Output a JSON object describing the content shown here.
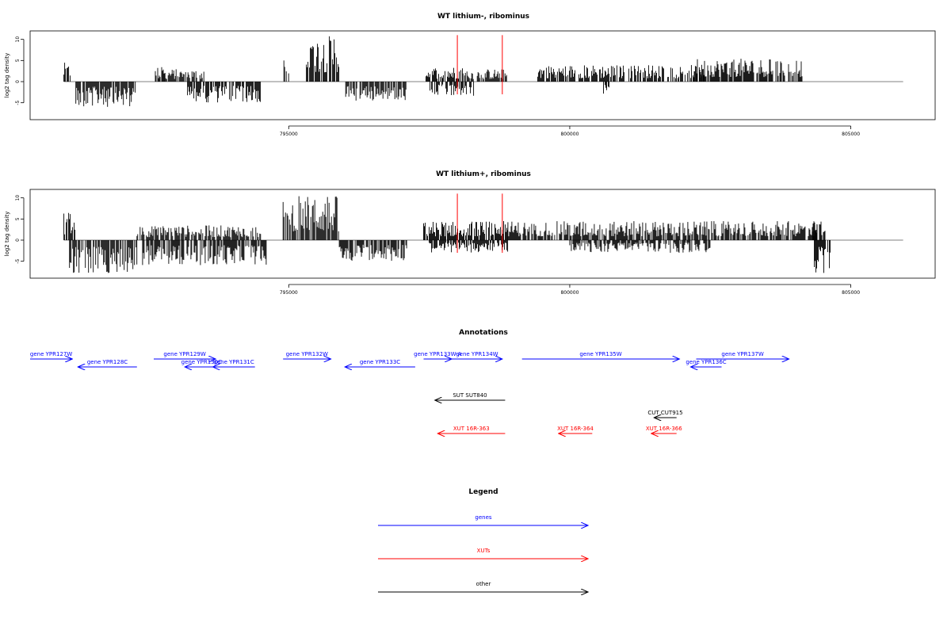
{
  "colors": {
    "gene": "#0000ff",
    "xut": "#ff0000",
    "other": "#000000",
    "marker": "#ff0000",
    "bars": "#000000",
    "baseline": "#808080"
  },
  "chart_data": [
    {
      "type": "bar",
      "title": "WT lithium-, ribominus",
      "ylabel": "log2 tag density",
      "xlim": [
        790400,
        806500
      ],
      "ylim": [
        -9,
        12
      ],
      "data_x_range": [
        791000,
        805000
      ],
      "xticks": [
        795000,
        800000,
        805000
      ],
      "yticks": [
        -5,
        0,
        5,
        10
      ],
      "grid": false,
      "markers_x": [
        798000,
        798800
      ],
      "segments": [
        {
          "x0": 791000,
          "x1": 791120,
          "sign": 1,
          "max": 4.5
        },
        {
          "x0": 791200,
          "x1": 792300,
          "sign": -1,
          "max": 6
        },
        {
          "x0": 792600,
          "x1": 792800,
          "sign": 1,
          "max": 3.5
        },
        {
          "x0": 792800,
          "x1": 793500,
          "sign": 1,
          "max": 3
        },
        {
          "x0": 793200,
          "x1": 794500,
          "sign": -1,
          "max": 5
        },
        {
          "x0": 794900,
          "x1": 795000,
          "sign": 1,
          "max": 7
        },
        {
          "x0": 795300,
          "x1": 795900,
          "sign": 1,
          "max": 11
        },
        {
          "x0": 796000,
          "x1": 797100,
          "sign": -1,
          "max": 4.5
        },
        {
          "x0": 797400,
          "x1": 798100,
          "sign": 1,
          "max": 3.5
        },
        {
          "x0": 797500,
          "x1": 798300,
          "sign": -1,
          "max": 3.5
        },
        {
          "x0": 798100,
          "x1": 798900,
          "sign": 1,
          "max": 3
        },
        {
          "x0": 799400,
          "x1": 802400,
          "sign": 1,
          "max": 4
        },
        {
          "x0": 800600,
          "x1": 800700,
          "sign": -1,
          "max": 3
        },
        {
          "x0": 802200,
          "x1": 804200,
          "sign": 1,
          "max": 5.5
        }
      ]
    },
    {
      "type": "bar",
      "title": "WT lithium+, ribominus",
      "ylabel": "log2 tag density",
      "xlim": [
        790400,
        806500
      ],
      "ylim": [
        -9,
        12
      ],
      "data_x_range": [
        791000,
        805000
      ],
      "xticks": [
        795000,
        800000,
        805000
      ],
      "yticks": [
        -5,
        0,
        5,
        10
      ],
      "grid": false,
      "markers_x": [
        798000,
        798800
      ],
      "segments": [
        {
          "x0": 791000,
          "x1": 791200,
          "sign": 1,
          "max": 6.5
        },
        {
          "x0": 791100,
          "x1": 792300,
          "sign": -1,
          "max": 8
        },
        {
          "x0": 792300,
          "x1": 794500,
          "sign": 1,
          "max": 3.5
        },
        {
          "x0": 792400,
          "x1": 794600,
          "sign": -1,
          "max": 6
        },
        {
          "x0": 794900,
          "x1": 795900,
          "sign": 1,
          "max": 10.5
        },
        {
          "x0": 795900,
          "x1": 797100,
          "sign": -1,
          "max": 5
        },
        {
          "x0": 797400,
          "x1": 798900,
          "sign": 1,
          "max": 4.5
        },
        {
          "x0": 797500,
          "x1": 798900,
          "sign": -1,
          "max": 3
        },
        {
          "x0": 798900,
          "x1": 804400,
          "sign": 1,
          "max": 4.5
        },
        {
          "x0": 800000,
          "x1": 802500,
          "sign": -1,
          "max": 3
        },
        {
          "x0": 804300,
          "x1": 804550,
          "sign": 1,
          "max": 5.5
        },
        {
          "x0": 804350,
          "x1": 804650,
          "sign": -1,
          "max": 8
        }
      ]
    }
  ],
  "annotations": {
    "title": "Annotations",
    "xlim": [
      790400,
      806500
    ],
    "features": [
      {
        "label": "gene YPR127W",
        "kind": "gene",
        "strand": "+",
        "start": 790400,
        "end": 791150,
        "row": 0
      },
      {
        "label": "gene YPR128C",
        "kind": "gene",
        "strand": "-",
        "start": 791250,
        "end": 792300,
        "row": 1
      },
      {
        "label": "gene YPR129W",
        "kind": "gene",
        "strand": "+",
        "start": 792600,
        "end": 793700,
        "row": 0
      },
      {
        "label": "gene YPR130C",
        "kind": "gene",
        "strand": "-",
        "start": 793150,
        "end": 793750,
        "row": 1
      },
      {
        "label": "gene YPR131C",
        "kind": "gene",
        "strand": "-",
        "start": 793650,
        "end": 794400,
        "row": 1
      },
      {
        "label": "gene YPR132W",
        "kind": "gene",
        "strand": "+",
        "start": 794900,
        "end": 795750,
        "row": 0
      },
      {
        "label": "gene YPR133C",
        "kind": "gene",
        "strand": "-",
        "start": 796000,
        "end": 797250,
        "row": 1
      },
      {
        "label": "gene YPR133W-A",
        "kind": "gene",
        "strand": "+",
        "start": 797400,
        "end": 797900,
        "row": 0
      },
      {
        "label": "gene YPR134W",
        "kind": "gene",
        "strand": "+",
        "start": 797900,
        "end": 798800,
        "row": 0
      },
      {
        "label": "gene YPR135W",
        "kind": "gene",
        "strand": "+",
        "start": 799150,
        "end": 801950,
        "row": 0
      },
      {
        "label": "gene YPR136C",
        "kind": "gene",
        "strand": "-",
        "start": 802150,
        "end": 802700,
        "row": 1
      },
      {
        "label": "gene YPR137W",
        "kind": "gene",
        "strand": "+",
        "start": 802250,
        "end": 803900,
        "row": 0
      },
      {
        "label": "SUT SUT840",
        "kind": "other",
        "strand": "-",
        "start": 797600,
        "end": 798850,
        "row": 3
      },
      {
        "label": "CUT CUT915",
        "kind": "other",
        "strand": "-",
        "start": 801500,
        "end": 801900,
        "row": 4
      },
      {
        "label": "XUT 16R-363",
        "kind": "xut",
        "strand": "-",
        "start": 797650,
        "end": 798850,
        "row": 5
      },
      {
        "label": "XUT 16R-364",
        "kind": "xut",
        "strand": "-",
        "start": 799800,
        "end": 800400,
        "row": 5
      },
      {
        "label": "XUT 16R-366",
        "kind": "xut",
        "strand": "-",
        "start": 801450,
        "end": 801900,
        "row": 5
      }
    ]
  },
  "legend": {
    "title": "Legend",
    "items": [
      {
        "label": "genes",
        "kind": "gene"
      },
      {
        "label": "XUTs",
        "kind": "xut"
      },
      {
        "label": "other",
        "kind": "other"
      }
    ]
  }
}
